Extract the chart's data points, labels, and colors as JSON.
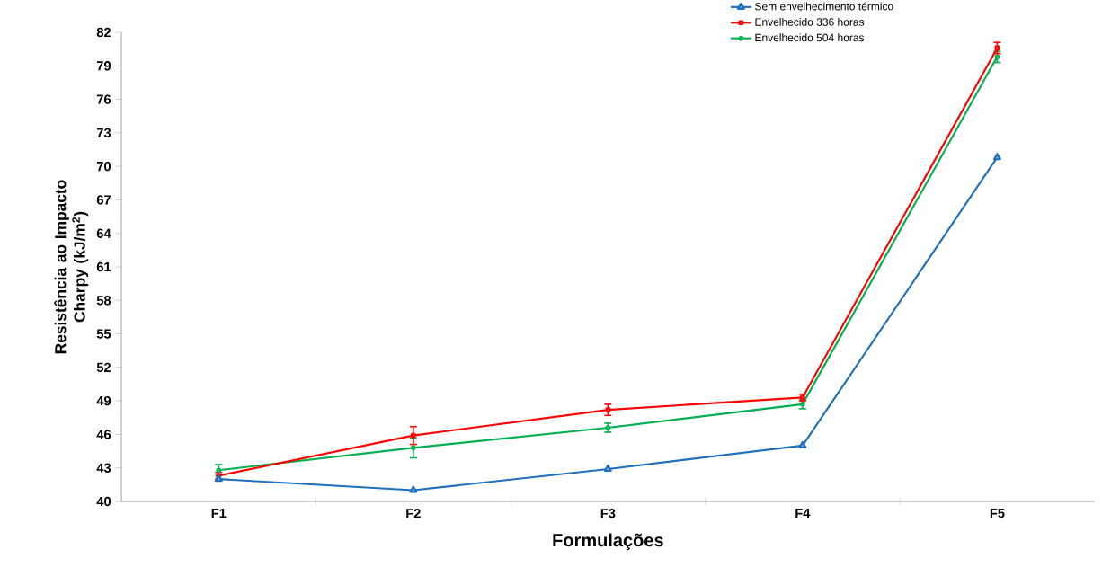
{
  "chart_data": {
    "type": "line",
    "xlabel": "Formulações",
    "ylabel": "Resistência ao Impacto Charpy (kJ/m$^{2}$)",
    "categories": [
      "F1",
      "F2",
      "F3",
      "F4",
      "F5"
    ],
    "series": [
      {
        "name": "Sem envelhecimento térmico",
        "color": "#1f6fbf",
        "marker": "triangle",
        "values": [
          42.0,
          41.0,
          42.9,
          45.0,
          70.8
        ]
      },
      {
        "name": "Envelhecido 336 horas",
        "color": "#ff0000",
        "marker": "square",
        "values": [
          42.3,
          45.9,
          48.2,
          49.3,
          80.6
        ],
        "errors": [
          0.3,
          0.8,
          0.5,
          0.3,
          0.5
        ]
      },
      {
        "name": "Envelhecido 504 horas",
        "color": "#00b050",
        "marker": "circle",
        "values": [
          42.8,
          44.8,
          46.6,
          48.7,
          79.8
        ],
        "errors": [
          0.5,
          0.9,
          0.4,
          0.4,
          0.5
        ]
      }
    ],
    "ylim": [
      40,
      82
    ],
    "yticks": [
      40,
      43,
      46,
      49,
      52,
      55,
      58,
      61,
      64,
      67,
      70,
      73,
      76,
      79,
      82
    ],
    "grid": false,
    "legend": "top right",
    "line_style": "solid"
  }
}
